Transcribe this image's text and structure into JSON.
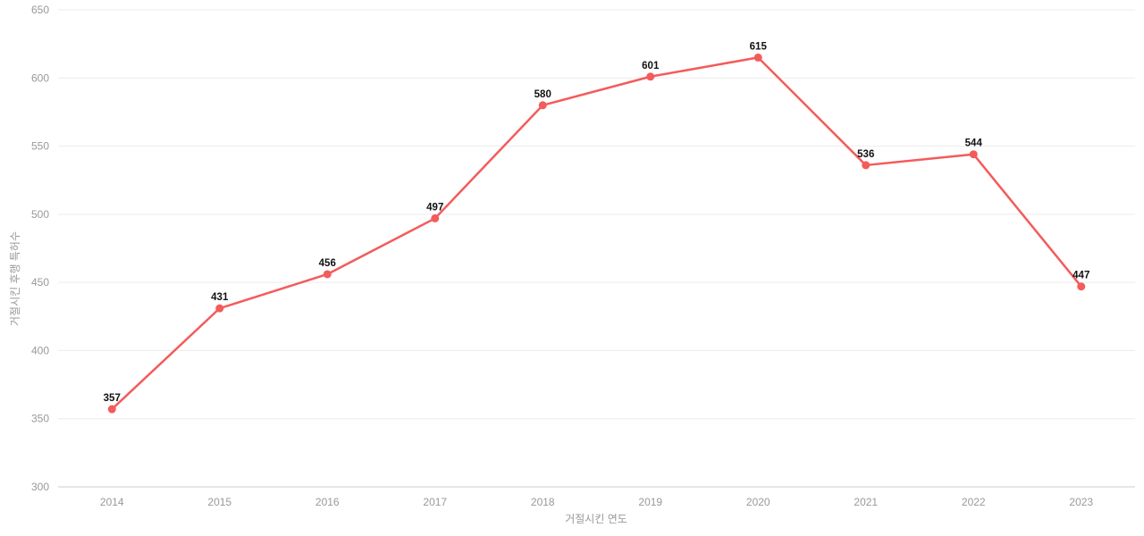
{
  "chart_data": {
    "type": "line",
    "title": "",
    "xlabel": "거절시킨 연도",
    "ylabel": "거절시킨 후행 특허수",
    "categories": [
      "2014",
      "2015",
      "2016",
      "2017",
      "2018",
      "2019",
      "2020",
      "2021",
      "2022",
      "2023"
    ],
    "series": [
      {
        "values": [
          357,
          431,
          456,
          497,
          580,
          601,
          615,
          536,
          544,
          447
        ]
      }
    ],
    "ylim": [
      300,
      650
    ],
    "yticks": [
      300,
      350,
      400,
      450,
      500,
      550,
      600,
      650
    ],
    "grid": true,
    "legend": false,
    "data_labels_shown": true,
    "colors": {
      "line": "#f45b5b",
      "point": "#f45b5b",
      "grid": "#ececec",
      "axis_line": "#cccccc",
      "tick_text": "#999999",
      "axis_title_text": "#999999",
      "data_label": "#111111",
      "background": "#ffffff"
    }
  }
}
